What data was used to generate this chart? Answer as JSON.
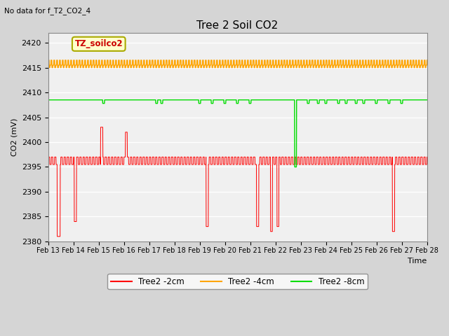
{
  "title": "Tree 2 Soil CO2",
  "subtitle": "No data for f_T2_CO2_4",
  "xlabel": "Time",
  "ylabel": "CO2 (mV)",
  "ylim": [
    2380,
    2422
  ],
  "yticks": [
    2380,
    2385,
    2390,
    2395,
    2400,
    2405,
    2410,
    2415,
    2420
  ],
  "xlim": [
    0,
    15
  ],
  "xtick_labels": [
    "Feb 13",
    "Feb 14",
    "Feb 15",
    "Feb 16",
    "Feb 17",
    "Feb 18",
    "Feb 19",
    "Feb 20",
    "Feb 21",
    "Feb 22",
    "Feb 23",
    "Feb 24",
    "Feb 25",
    "Feb 26",
    "Feb 27",
    "Feb 28"
  ],
  "fig_bg_color": "#d5d5d5",
  "plot_bg_color": "#f0f0f0",
  "annotation_box": "TZ_soilco2",
  "red": {
    "label": "Tree2 -2cm",
    "color": "#ff0000",
    "base": 2396.5,
    "high": 2397.0,
    "low": 2395.5
  },
  "orange": {
    "label": "Tree2 -4cm",
    "color": "#ffa500",
    "base": 2415.5,
    "high": 2416.5,
    "low": 2415.0
  },
  "green": {
    "label": "Tree2 -8cm",
    "color": "#00dd00",
    "base": 2408.5,
    "high": 2408.8,
    "low": 2408.2
  }
}
